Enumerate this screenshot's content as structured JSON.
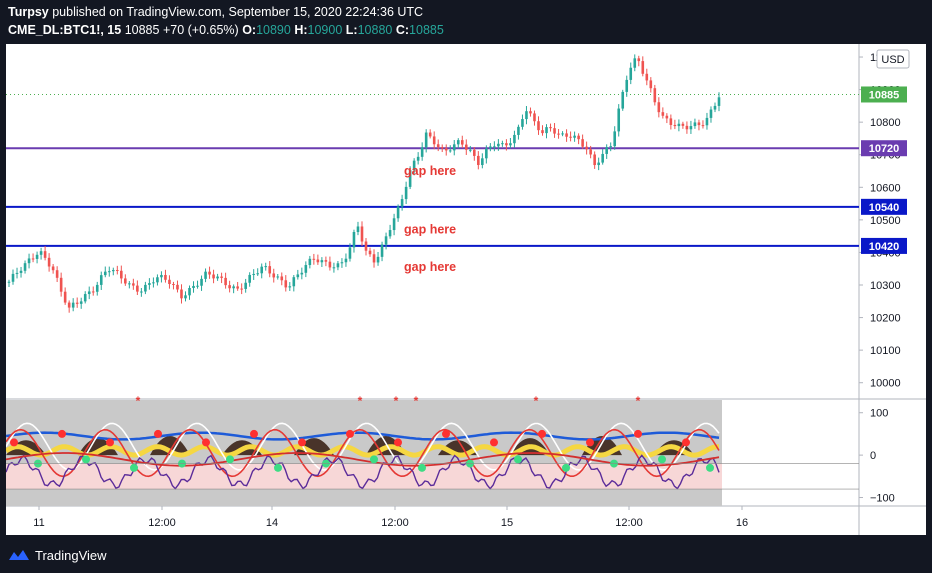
{
  "header": {
    "publisher": "Turpsy",
    "published_text": "published on TradingView.com, September 15, 2020 22:24:36 UTC",
    "symbol": "CME_DL:BTC1!, 15",
    "last": "10885",
    "change": "+70 (+0.65%)",
    "o_label": "O:",
    "o_value": "10890",
    "h_label": "H:",
    "h_value": "10900",
    "l_label": "L:",
    "l_value": "10880",
    "c_label": "C:",
    "c_value": "10885"
  },
  "footer": {
    "brand": "TradingView"
  },
  "colors": {
    "up": "#26a69a",
    "down": "#ef5350",
    "purple_line": "#6a3cb0",
    "blue_line": "#0a18c8",
    "last_price": "#4caf50",
    "annotation": "#e53935"
  },
  "chart_data": {
    "type": "candlestick",
    "currency_label": "USD",
    "y_ticks": [
      "10000",
      "10100",
      "10200",
      "10300",
      "10400",
      "10500",
      "10600",
      "10700",
      "10800",
      "10900",
      "11000"
    ],
    "ylim": [
      9950,
      11040
    ],
    "x_ticks": [
      "11",
      "12:00",
      "14",
      "12:00",
      "15",
      "12:00",
      "16"
    ],
    "horizontal_lines": [
      {
        "label": "10720",
        "value": 10720,
        "style": "purple"
      },
      {
        "label": "10540",
        "value": 10540,
        "style": "blue"
      },
      {
        "label": "10420",
        "value": 10420,
        "style": "blue"
      }
    ],
    "last_price": {
      "label": "10885",
      "value": 10885
    },
    "annotations": [
      {
        "text": "gap here",
        "value": 10650
      },
      {
        "text": "gap here",
        "value": 10470
      },
      {
        "text": "gap here",
        "value": 10355
      }
    ],
    "price_path": [
      [
        0,
        10310
      ],
      [
        4,
        10360
      ],
      [
        7,
        10410
      ],
      [
        10,
        10360
      ],
      [
        12,
        10280
      ],
      [
        14,
        10220
      ],
      [
        17,
        10260
      ],
      [
        20,
        10300
      ],
      [
        23,
        10350
      ],
      [
        26,
        10320
      ],
      [
        28,
        10300
      ],
      [
        31,
        10290
      ],
      [
        34,
        10320
      ],
      [
        37,
        10310
      ],
      [
        40,
        10270
      ],
      [
        43,
        10300
      ],
      [
        46,
        10330
      ],
      [
        50,
        10310
      ],
      [
        53,
        10290
      ],
      [
        56,
        10320
      ],
      [
        59,
        10350
      ],
      [
        62,
        10330
      ],
      [
        65,
        10300
      ],
      [
        68,
        10340
      ],
      [
        71,
        10380
      ],
      [
        74,
        10370
      ],
      [
        77,
        10360
      ],
      [
        79,
        10400
      ],
      [
        81,
        10480
      ],
      [
        83,
        10400
      ],
      [
        85,
        10380
      ],
      [
        87,
        10430
      ],
      [
        89,
        10490
      ],
      [
        91,
        10540
      ],
      [
        93,
        10640
      ],
      [
        95,
        10700
      ],
      [
        97,
        10770
      ],
      [
        99,
        10740
      ],
      [
        101,
        10700
      ],
      [
        103,
        10720
      ],
      [
        105,
        10740
      ],
      [
        107,
        10720
      ],
      [
        109,
        10680
      ],
      [
        111,
        10710
      ],
      [
        113,
        10730
      ],
      [
        115,
        10720
      ],
      [
        118,
        10770
      ],
      [
        120,
        10850
      ],
      [
        122,
        10800
      ],
      [
        124,
        10760
      ],
      [
        126,
        10780
      ],
      [
        128,
        10760
      ],
      [
        130,
        10770
      ],
      [
        132,
        10750
      ],
      [
        134,
        10720
      ],
      [
        136,
        10660
      ],
      [
        138,
        10700
      ],
      [
        140,
        10740
      ],
      [
        142,
        10860
      ],
      [
        144,
        10960
      ],
      [
        146,
        10990
      ],
      [
        148,
        10930
      ],
      [
        150,
        10870
      ],
      [
        152,
        10820
      ],
      [
        154,
        10800
      ],
      [
        156,
        10780
      ],
      [
        158,
        10780
      ],
      [
        160,
        10790
      ],
      [
        162,
        10810
      ],
      [
        164,
        10860
      ],
      [
        165,
        10885
      ]
    ],
    "oscillator": {
      "y_ticks": [
        "100",
        "0",
        "−100"
      ],
      "ylim": [
        -120,
        130
      ],
      "zones": [
        {
          "from": -80,
          "to": -20,
          "color": "#f7d7d7"
        }
      ]
    }
  }
}
